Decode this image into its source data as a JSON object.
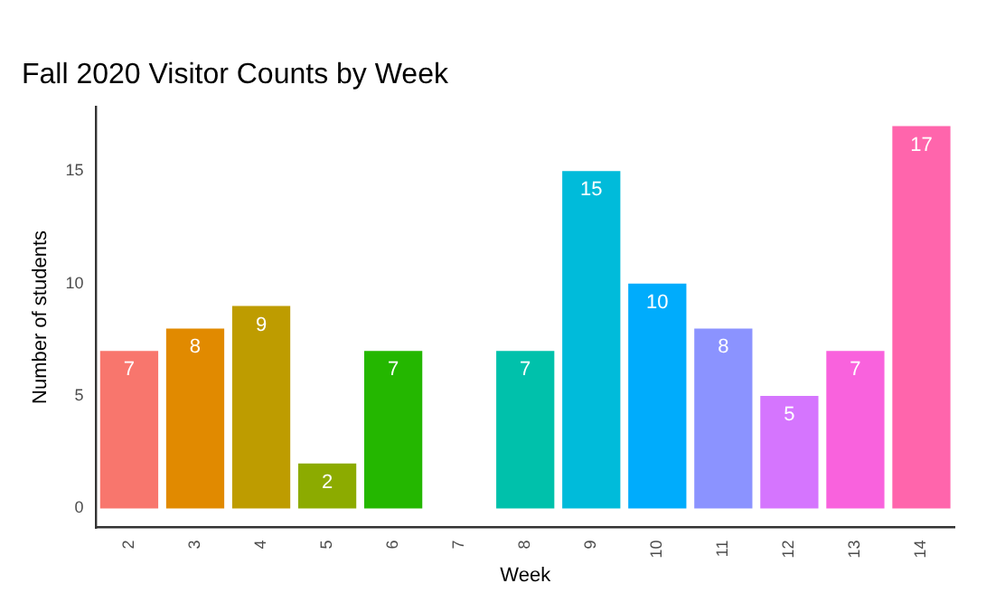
{
  "chart_data": {
    "type": "bar",
    "title": "Fall 2020 Visitor Counts by Week",
    "xlabel": "Week",
    "ylabel": "Number of students",
    "categories": [
      "2",
      "3",
      "4",
      "5",
      "6",
      "7",
      "8",
      "9",
      "10",
      "11",
      "12",
      "13",
      "14"
    ],
    "values": [
      7,
      8,
      9,
      2,
      7,
      null,
      7,
      15,
      10,
      8,
      5,
      7,
      17
    ],
    "value_labels": [
      "7",
      "8",
      "9",
      "2",
      "7",
      null,
      "7",
      "15",
      "10",
      "8",
      "5",
      "7",
      "17"
    ],
    "colors": [
      "#f8766d",
      "#e18a00",
      "#be9c00",
      "#8cab00",
      "#24b700",
      null,
      "#00c1ab",
      "#00bbda",
      "#00acfc",
      "#8b93ff",
      "#d575fe",
      "#f962dd",
      "#ff65ac"
    ],
    "ylim": [
      -0.85,
      17.85
    ],
    "yticks": [
      0,
      5,
      10,
      15
    ],
    "grid": false,
    "legend": false
  }
}
